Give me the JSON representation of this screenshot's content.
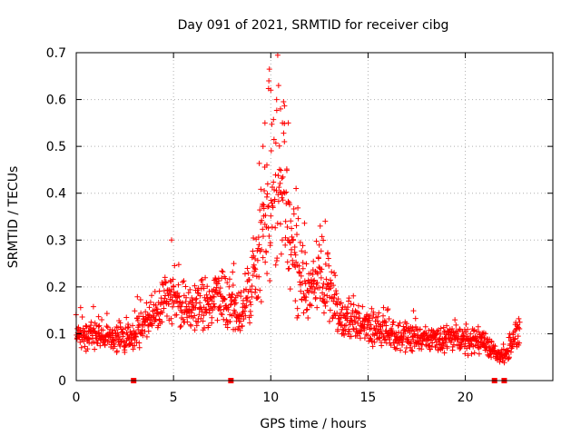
{
  "chart_data": {
    "type": "scatter",
    "title": "Day 091 of 2021, SRMTID for receiver cibg",
    "xlabel": "GPS time / hours",
    "ylabel": "SRMTID / TECUs",
    "xlim": [
      0,
      24.5
    ],
    "ylim": [
      0,
      0.7
    ],
    "x_ticks": [
      0,
      5,
      10,
      15,
      20
    ],
    "x_tick_labels": [
      "0",
      "5",
      "10",
      "15",
      "20"
    ],
    "y_ticks": [
      0,
      0.1,
      0.2,
      0.3,
      0.4,
      0.5,
      0.6,
      0.7
    ],
    "y_tick_labels": [
      "0",
      "0.1",
      "0.2",
      "0.3",
      "0.4",
      "0.5",
      "0.6",
      "0.7"
    ],
    "grid": true,
    "marker": "+",
    "series": [
      {
        "name": "SRMTID",
        "color": "#ff0000",
        "time_range_hours": [
          0,
          22.8
        ],
        "profile": [
          [
            0.0,
            0.09
          ],
          [
            0.5,
            0.095
          ],
          [
            1.0,
            0.1
          ],
          [
            1.5,
            0.095
          ],
          [
            2.0,
            0.09
          ],
          [
            2.5,
            0.09
          ],
          [
            3.0,
            0.1
          ],
          [
            3.5,
            0.12
          ],
          [
            4.0,
            0.14
          ],
          [
            4.5,
            0.17
          ],
          [
            5.0,
            0.18
          ],
          [
            5.5,
            0.16
          ],
          [
            6.0,
            0.15
          ],
          [
            6.5,
            0.16
          ],
          [
            7.0,
            0.17
          ],
          [
            7.5,
            0.18
          ],
          [
            8.0,
            0.15
          ],
          [
            8.5,
            0.14
          ],
          [
            9.0,
            0.2
          ],
          [
            9.5,
            0.28
          ],
          [
            10.0,
            0.38
          ],
          [
            10.3,
            0.43
          ],
          [
            10.7,
            0.4
          ],
          [
            11.0,
            0.32
          ],
          [
            11.5,
            0.22
          ],
          [
            12.0,
            0.19
          ],
          [
            12.5,
            0.22
          ],
          [
            13.0,
            0.2
          ],
          [
            13.5,
            0.13
          ],
          [
            14.0,
            0.13
          ],
          [
            15.0,
            0.12
          ],
          [
            16.0,
            0.1
          ],
          [
            17.0,
            0.09
          ],
          [
            18.0,
            0.09
          ],
          [
            19.0,
            0.09
          ],
          [
            20.0,
            0.085
          ],
          [
            21.0,
            0.08
          ],
          [
            21.5,
            0.06
          ],
          [
            22.0,
            0.05
          ],
          [
            22.5,
            0.09
          ],
          [
            22.8,
            0.11
          ]
        ],
        "peak_points": [
          [
            9.9,
            0.64
          ],
          [
            10.0,
            0.62
          ],
          [
            10.4,
            0.63
          ],
          [
            10.5,
            0.58
          ],
          [
            10.6,
            0.55
          ],
          [
            10.7,
            0.51
          ],
          [
            9.7,
            0.55
          ],
          [
            9.6,
            0.5
          ],
          [
            9.8,
            0.46
          ],
          [
            11.3,
            0.41
          ],
          [
            10.9,
            0.55
          ],
          [
            10.3,
            0.6
          ],
          [
            12.8,
            0.34
          ],
          [
            4.9,
            0.3
          ],
          [
            8.1,
            0.25
          ]
        ],
        "gap_markers_x": [
          2.95,
          7.95,
          21.5,
          22.0
        ]
      }
    ]
  }
}
